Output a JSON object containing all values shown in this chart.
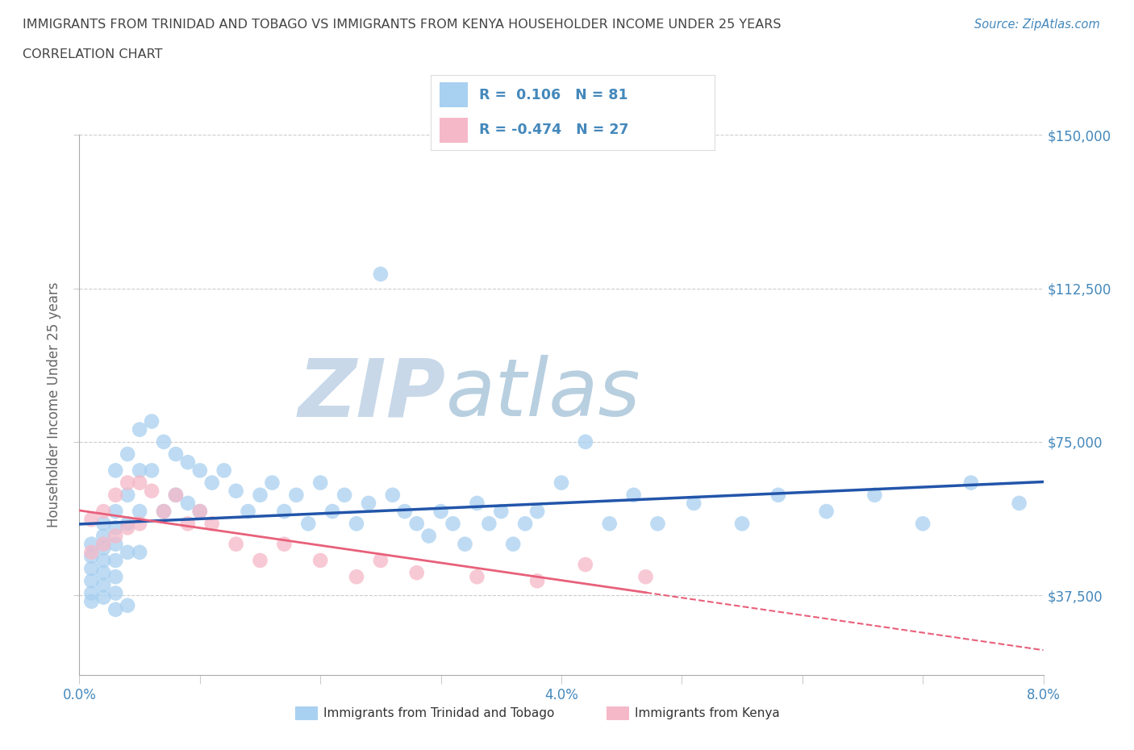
{
  "title_line1": "IMMIGRANTS FROM TRINIDAD AND TOBAGO VS IMMIGRANTS FROM KENYA HOUSEHOLDER INCOME UNDER 25 YEARS",
  "title_line2": "CORRELATION CHART",
  "source_text": "Source: ZipAtlas.com",
  "ylabel": "Householder Income Under 25 years",
  "xlim": [
    0.0,
    0.08
  ],
  "ylim": [
    18000,
    150000
  ],
  "yticks": [
    37500,
    75000,
    112500,
    150000
  ],
  "ytick_labels": [
    "$37,500",
    "$75,000",
    "$112,500",
    "$150,000"
  ],
  "xtick_positions": [
    0.0,
    0.01,
    0.02,
    0.03,
    0.04,
    0.05,
    0.06,
    0.07,
    0.08
  ],
  "xtick_labels": [
    "0.0%",
    "",
    "",
    "",
    "4.0%",
    "",
    "",
    "",
    "8.0%"
  ],
  "watermark_part1": "ZIP",
  "watermark_part2": "atlas",
  "legend_r1": "R =  0.106   N = 81",
  "legend_r2": "R = -0.474   N = 27",
  "color_tt": "#a8d0f0",
  "color_kenya": "#f5b8c8",
  "line_color_tt": "#2255aa",
  "line_color_kenya": "#e8607a",
  "background_color": "#ffffff",
  "grid_color": "#cccccc",
  "title_color": "#444444",
  "tick_color": "#4488bb",
  "watermark_color1": "#c8d8e8",
  "watermark_color2": "#b8cfe0",
  "tt_x": [
    0.001,
    0.001,
    0.001,
    0.001,
    0.001,
    0.001,
    0.002,
    0.002,
    0.002,
    0.002,
    0.002,
    0.002,
    0.002,
    0.003,
    0.003,
    0.003,
    0.003,
    0.003,
    0.003,
    0.003,
    0.003,
    0.004,
    0.004,
    0.004,
    0.004,
    0.004,
    0.005,
    0.005,
    0.005,
    0.005,
    0.006,
    0.006,
    0.007,
    0.007,
    0.008,
    0.008,
    0.009,
    0.009,
    0.01,
    0.01,
    0.011,
    0.012,
    0.013,
    0.014,
    0.015,
    0.016,
    0.017,
    0.018,
    0.019,
    0.02,
    0.021,
    0.022,
    0.023,
    0.024,
    0.025,
    0.026,
    0.027,
    0.028,
    0.029,
    0.03,
    0.031,
    0.032,
    0.033,
    0.034,
    0.035,
    0.036,
    0.037,
    0.038,
    0.04,
    0.042,
    0.044,
    0.046,
    0.048,
    0.051,
    0.055,
    0.058,
    0.062,
    0.066,
    0.07,
    0.074,
    0.078
  ],
  "tt_y": [
    50000,
    47000,
    44000,
    41000,
    38000,
    36000,
    55000,
    52000,
    49000,
    46000,
    43000,
    40000,
    37000,
    68000,
    58000,
    54000,
    50000,
    46000,
    42000,
    38000,
    34000,
    72000,
    62000,
    55000,
    48000,
    35000,
    78000,
    68000,
    58000,
    48000,
    80000,
    68000,
    75000,
    58000,
    72000,
    62000,
    70000,
    60000,
    68000,
    58000,
    65000,
    68000,
    63000,
    58000,
    62000,
    65000,
    58000,
    62000,
    55000,
    65000,
    58000,
    62000,
    55000,
    60000,
    116000,
    62000,
    58000,
    55000,
    52000,
    58000,
    55000,
    50000,
    60000,
    55000,
    58000,
    50000,
    55000,
    58000,
    65000,
    75000,
    55000,
    62000,
    55000,
    60000,
    55000,
    62000,
    58000,
    62000,
    55000,
    65000,
    60000
  ],
  "kenya_x": [
    0.001,
    0.001,
    0.002,
    0.002,
    0.003,
    0.003,
    0.004,
    0.004,
    0.005,
    0.005,
    0.006,
    0.007,
    0.008,
    0.009,
    0.01,
    0.011,
    0.013,
    0.015,
    0.017,
    0.02,
    0.023,
    0.025,
    0.028,
    0.033,
    0.038,
    0.042,
    0.047
  ],
  "kenya_y": [
    56000,
    48000,
    58000,
    50000,
    62000,
    52000,
    65000,
    54000,
    65000,
    55000,
    63000,
    58000,
    62000,
    55000,
    58000,
    55000,
    50000,
    46000,
    50000,
    46000,
    42000,
    46000,
    43000,
    42000,
    41000,
    45000,
    42000
  ]
}
